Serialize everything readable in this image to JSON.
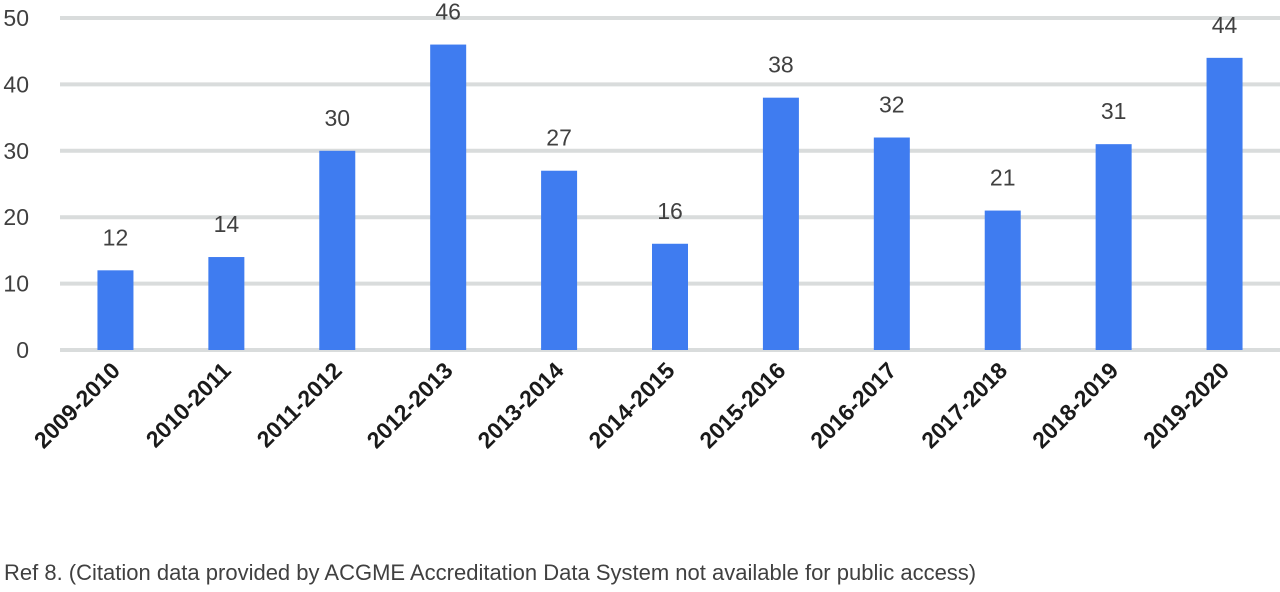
{
  "chart_data": {
    "type": "bar",
    "categories": [
      "2009-2010",
      "2010-2011",
      "2011-2012",
      "2012-2013",
      "2013-2014",
      "2014-2015",
      "2015-2016",
      "2016-2017",
      "2017-2018",
      "2018-2019",
      "2019-2020"
    ],
    "values": [
      12,
      14,
      30,
      46,
      27,
      16,
      38,
      32,
      21,
      31,
      44
    ],
    "title": "",
    "xlabel": "",
    "ylabel": "",
    "ylim": [
      0,
      50
    ],
    "yticks": [
      0,
      10,
      20,
      30,
      40,
      50
    ],
    "grid": true,
    "legend": "none",
    "data_labels": true,
    "colors": {
      "bar": "#3f7cf0",
      "grid": "#d9dcdc"
    }
  },
  "footnote": "Ref 8. (Citation data provided by ACGME Accreditation Data System not available for public access)"
}
